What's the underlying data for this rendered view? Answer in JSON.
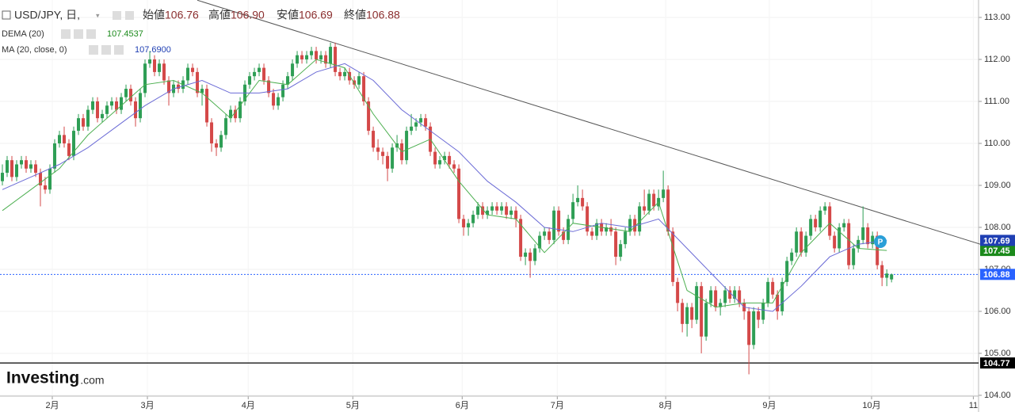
{
  "chart_data": {
    "type": "candlestick",
    "title": "USD/JPY, 日,",
    "header_stats": [
      {
        "label": "始値",
        "value": 106.76
      },
      {
        "label": "高値",
        "value": {
          "value": 106.9,
          "label": "106.90"
        }
      },
      {
        "label": "安値",
        "value": 106.69
      },
      {
        "label": "終値",
        "value": 106.88
      }
    ],
    "up_color": "#2e9e55",
    "down_color": "#d44848",
    "xlim": [
      -0.5,
      205.3
    ],
    "ylim": [
      103.98,
      113.415
    ],
    "xticks": [
      {
        "value": 10.5,
        "label": "2月"
      },
      {
        "value": 30.5,
        "label": "3月"
      },
      {
        "value": 51.7,
        "label": "4月"
      },
      {
        "value": 73.7,
        "label": "5月"
      },
      {
        "value": 96.7,
        "label": "6月"
      },
      {
        "value": 116.7,
        "label": "7月"
      },
      {
        "value": 139.5,
        "label": "8月"
      },
      {
        "value": 161.3,
        "label": "9月"
      },
      {
        "value": 182.8,
        "label": "10月"
      },
      {
        "value": 204.2,
        "label": "11"
      }
    ],
    "yticks": [
      {
        "value": 104,
        "label": "104.00"
      },
      {
        "value": 105,
        "label": "105.00"
      },
      {
        "value": 106,
        "label": "106.00"
      },
      {
        "value": 107,
        "label": "107.00"
      },
      {
        "value": 108,
        "label": "108.00"
      },
      {
        "value": 109,
        "label": "109.00"
      },
      {
        "value": 110,
        "label": "110.00"
      },
      {
        "value": 111,
        "label": "111.00"
      },
      {
        "value": 112,
        "label": "112.00"
      },
      {
        "value": 113,
        "label": "113.00"
      }
    ],
    "grid": true,
    "candles": [
      [
        109.1,
        109.5,
        109.0,
        109.3
      ],
      [
        109.3,
        109.7,
        109.2,
        109.6
      ],
      [
        109.6,
        109.7,
        109.1,
        109.2
      ],
      [
        109.2,
        109.6,
        109.1,
        109.5
      ],
      [
        109.5,
        109.7,
        109.4,
        109.6
      ],
      [
        109.6,
        109.7,
        109.3,
        109.4
      ],
      [
        109.4,
        109.6,
        109.3,
        109.5
      ],
      [
        109.5,
        109.6,
        109.2,
        109.3
      ],
      [
        109.3,
        109.4,
        108.5,
        109.0
      ],
      [
        109.0,
        109.2,
        108.8,
        108.9
      ],
      [
        108.9,
        109.5,
        108.8,
        109.4
      ],
      [
        109.4,
        110.1,
        109.3,
        110.0
      ],
      [
        110.0,
        110.3,
        109.9,
        110.2
      ],
      [
        110.2,
        110.4,
        109.9,
        110.0
      ],
      [
        110.0,
        110.1,
        109.6,
        109.7
      ],
      [
        109.7,
        110.4,
        109.6,
        110.3
      ],
      [
        110.3,
        110.7,
        110.2,
        110.6
      ],
      [
        110.6,
        110.7,
        110.3,
        110.4
      ],
      [
        110.4,
        110.9,
        110.3,
        110.8
      ],
      [
        110.8,
        111.1,
        110.7,
        111.0
      ],
      [
        111.0,
        111.1,
        110.5,
        110.6
      ],
      [
        110.6,
        110.8,
        110.5,
        110.7
      ],
      [
        110.7,
        111.0,
        110.6,
        110.9
      ],
      [
        110.9,
        111.1,
        110.8,
        111.0
      ],
      [
        111.0,
        111.1,
        110.7,
        110.8
      ],
      [
        110.8,
        111.2,
        110.7,
        111.1
      ],
      [
        111.1,
        111.4,
        111.0,
        111.3
      ],
      [
        111.3,
        111.4,
        110.9,
        111.0
      ],
      [
        111.0,
        111.1,
        110.4,
        110.6
      ],
      [
        110.6,
        111.3,
        110.5,
        111.2
      ],
      [
        111.2,
        112.0,
        111.1,
        111.9
      ],
      [
        111.9,
        112.2,
        111.8,
        112.0
      ],
      [
        112.0,
        112.1,
        111.6,
        111.7
      ],
      [
        111.7,
        112.0,
        111.6,
        111.9
      ],
      [
        111.9,
        112.0,
        111.4,
        111.5
      ],
      [
        111.5,
        111.6,
        110.9,
        111.2
      ],
      [
        111.2,
        111.5,
        111.1,
        111.4
      ],
      [
        111.4,
        111.5,
        111.2,
        111.3
      ],
      [
        111.3,
        111.6,
        111.2,
        111.5
      ],
      [
        111.5,
        111.9,
        111.4,
        111.8
      ],
      [
        111.8,
        111.9,
        111.6,
        111.7
      ],
      [
        111.7,
        111.8,
        111.1,
        111.2
      ],
      [
        111.2,
        111.4,
        110.9,
        111.3
      ],
      [
        111.3,
        111.4,
        110.4,
        110.5
      ],
      [
        110.5,
        110.6,
        109.8,
        110.0
      ],
      [
        110.0,
        110.1,
        109.7,
        109.9
      ],
      [
        109.9,
        110.3,
        109.8,
        110.2
      ],
      [
        110.2,
        110.7,
        110.1,
        110.6
      ],
      [
        110.6,
        110.9,
        110.5,
        110.8
      ],
      [
        110.8,
        110.9,
        110.5,
        110.6
      ],
      [
        110.6,
        111.1,
        110.5,
        111.0
      ],
      [
        111.0,
        111.5,
        110.9,
        111.4
      ],
      [
        111.4,
        111.7,
        111.3,
        111.6
      ],
      [
        111.6,
        111.8,
        111.5,
        111.7
      ],
      [
        111.7,
        111.9,
        111.6,
        111.8
      ],
      [
        111.8,
        111.9,
        111.4,
        111.5
      ],
      [
        111.5,
        111.6,
        111.1,
        111.2
      ],
      [
        111.2,
        111.3,
        110.8,
        110.9
      ],
      [
        110.9,
        111.2,
        110.8,
        111.1
      ],
      [
        111.1,
        111.5,
        111.0,
        111.4
      ],
      [
        111.4,
        111.7,
        111.3,
        111.6
      ],
      [
        111.6,
        112.0,
        111.5,
        111.9
      ],
      [
        111.9,
        112.2,
        111.8,
        112.1
      ],
      [
        112.1,
        112.2,
        111.9,
        112.0
      ],
      [
        112.0,
        112.2,
        111.9,
        112.1
      ],
      [
        112.1,
        112.3,
        112.0,
        112.2
      ],
      [
        112.2,
        112.3,
        111.9,
        112.0
      ],
      [
        112.0,
        112.2,
        111.9,
        112.1
      ],
      [
        112.1,
        112.2,
        111.8,
        111.9
      ],
      [
        111.9,
        112.4,
        111.8,
        112.3
      ],
      [
        112.3,
        112.4,
        111.6,
        111.7
      ],
      [
        111.7,
        111.8,
        111.5,
        111.6
      ],
      [
        111.6,
        111.8,
        111.5,
        111.7
      ],
      [
        111.7,
        111.8,
        111.4,
        111.5
      ],
      [
        111.5,
        111.6,
        111.3,
        111.4
      ],
      [
        111.4,
        111.7,
        111.3,
        111.6
      ],
      [
        111.6,
        111.7,
        110.9,
        111.0
      ],
      [
        111.0,
        111.1,
        110.2,
        110.3
      ],
      [
        110.3,
        110.4,
        109.8,
        109.9
      ],
      [
        109.9,
        110.1,
        109.6,
        109.8
      ],
      [
        109.8,
        109.9,
        109.5,
        109.7
      ],
      [
        109.7,
        109.8,
        109.1,
        109.4
      ],
      [
        109.4,
        110.0,
        109.3,
        109.9
      ],
      [
        109.9,
        110.2,
        109.8,
        110.0
      ],
      [
        110.0,
        110.1,
        109.5,
        109.6
      ],
      [
        109.6,
        110.4,
        109.5,
        110.3
      ],
      [
        110.3,
        110.7,
        110.2,
        110.4
      ],
      [
        110.4,
        110.6,
        110.3,
        110.5
      ],
      [
        110.5,
        110.7,
        110.4,
        110.6
      ],
      [
        110.6,
        110.7,
        110.3,
        110.4
      ],
      [
        110.4,
        110.5,
        109.7,
        109.8
      ],
      [
        109.8,
        109.9,
        109.4,
        109.5
      ],
      [
        109.5,
        109.7,
        109.4,
        109.6
      ],
      [
        109.6,
        109.8,
        109.5,
        109.7
      ],
      [
        109.7,
        109.8,
        109.4,
        109.5
      ],
      [
        109.5,
        109.6,
        109.3,
        109.4
      ],
      [
        109.4,
        109.5,
        108.1,
        108.2
      ],
      [
        108.2,
        108.3,
        107.8,
        108.0
      ],
      [
        108.0,
        108.2,
        107.8,
        108.1
      ],
      [
        108.1,
        108.4,
        108.0,
        108.3
      ],
      [
        108.3,
        108.6,
        108.2,
        108.5
      ],
      [
        108.5,
        108.6,
        108.2,
        108.3
      ],
      [
        108.3,
        108.5,
        108.2,
        108.4
      ],
      [
        108.4,
        108.6,
        108.3,
        108.5
      ],
      [
        108.5,
        108.6,
        108.3,
        108.4
      ],
      [
        108.4,
        108.6,
        108.3,
        108.5
      ],
      [
        108.5,
        108.6,
        108.2,
        108.3
      ],
      [
        108.3,
        108.5,
        108.2,
        108.4
      ],
      [
        108.4,
        108.5,
        108.0,
        108.2
      ],
      [
        108.2,
        108.3,
        107.2,
        107.3
      ],
      [
        107.3,
        107.5,
        107.1,
        107.4
      ],
      [
        107.4,
        107.5,
        106.8,
        107.2
      ],
      [
        107.2,
        107.6,
        107.1,
        107.5
      ],
      [
        107.5,
        107.9,
        107.4,
        107.8
      ],
      [
        107.8,
        108.0,
        107.7,
        107.9
      ],
      [
        107.9,
        108.0,
        107.6,
        107.7
      ],
      [
        107.7,
        108.5,
        107.6,
        108.4
      ],
      [
        108.4,
        108.5,
        107.8,
        107.9
      ],
      [
        107.9,
        108.0,
        107.6,
        107.7
      ],
      [
        107.7,
        108.3,
        107.6,
        108.2
      ],
      [
        108.2,
        108.8,
        108.1,
        108.6
      ],
      [
        108.6,
        109.0,
        108.5,
        108.7
      ],
      [
        108.7,
        108.9,
        108.4,
        108.5
      ],
      [
        108.5,
        108.6,
        107.8,
        107.9
      ],
      [
        107.9,
        108.0,
        107.7,
        107.8
      ],
      [
        107.8,
        108.2,
        107.7,
        108.1
      ],
      [
        108.1,
        108.2,
        107.8,
        107.9
      ],
      [
        107.9,
        108.1,
        107.8,
        108.0
      ],
      [
        108.0,
        108.2,
        107.8,
        107.9
      ],
      [
        107.9,
        108.0,
        107.1,
        107.3
      ],
      [
        107.3,
        107.7,
        107.2,
        107.6
      ],
      [
        107.6,
        108.0,
        107.5,
        107.9
      ],
      [
        107.9,
        108.3,
        107.8,
        108.2
      ],
      [
        108.2,
        108.3,
        107.8,
        107.9
      ],
      [
        107.9,
        108.6,
        107.8,
        108.5
      ],
      [
        108.5,
        108.9,
        108.3,
        108.4
      ],
      [
        108.4,
        108.9,
        108.3,
        108.8
      ],
      [
        108.8,
        108.9,
        108.4,
        108.5
      ],
      [
        108.5,
        108.9,
        108.4,
        108.7
      ],
      [
        108.7,
        109.35,
        108.6,
        108.9
      ],
      [
        108.9,
        109.0,
        107.8,
        107.9
      ],
      [
        107.9,
        108.0,
        106.6,
        106.7
      ],
      [
        106.7,
        106.8,
        106.0,
        106.2
      ],
      [
        106.2,
        106.3,
        105.5,
        105.7
      ],
      [
        105.7,
        106.2,
        105.4,
        106.1
      ],
      [
        106.1,
        106.2,
        105.6,
        105.8
      ],
      [
        105.8,
        106.7,
        105.7,
        106.6
      ],
      [
        106.6,
        106.7,
        105.0,
        105.4
      ],
      [
        105.4,
        106.3,
        105.3,
        106.2
      ],
      [
        106.2,
        106.6,
        106.1,
        106.5
      ],
      [
        106.5,
        106.6,
        106.0,
        106.1
      ],
      [
        106.1,
        106.3,
        105.9,
        106.2
      ],
      [
        106.2,
        106.6,
        106.1,
        106.5
      ],
      [
        106.5,
        106.6,
        106.2,
        106.3
      ],
      [
        106.3,
        106.6,
        106.2,
        106.5
      ],
      [
        106.5,
        106.6,
        106.1,
        106.2
      ],
      [
        106.2,
        106.3,
        105.8,
        106.0
      ],
      [
        106.0,
        106.1,
        104.5,
        105.2
      ],
      [
        105.2,
        106.1,
        105.1,
        106.0
      ],
      [
        106.0,
        106.1,
        105.6,
        105.8
      ],
      [
        105.8,
        106.3,
        105.7,
        106.2
      ],
      [
        106.2,
        106.8,
        106.1,
        106.7
      ],
      [
        106.7,
        106.8,
        106.3,
        106.4
      ],
      [
        106.4,
        106.5,
        105.8,
        106.0
      ],
      [
        106.0,
        106.8,
        105.9,
        106.7
      ],
      [
        106.7,
        107.3,
        106.6,
        107.2
      ],
      [
        107.2,
        107.5,
        107.1,
        107.4
      ],
      [
        107.4,
        108.0,
        107.3,
        107.9
      ],
      [
        107.9,
        108.0,
        107.3,
        107.4
      ],
      [
        107.4,
        107.9,
        107.3,
        107.8
      ],
      [
        107.8,
        108.3,
        107.7,
        108.2
      ],
      [
        108.2,
        108.3,
        107.9,
        108.0
      ],
      [
        108.0,
        108.5,
        107.9,
        108.4
      ],
      [
        108.4,
        108.6,
        108.3,
        108.5
      ],
      [
        108.5,
        108.6,
        107.7,
        107.8
      ],
      [
        107.8,
        107.9,
        107.4,
        107.5
      ],
      [
        107.5,
        108.1,
        107.4,
        108.0
      ],
      [
        108.0,
        108.2,
        107.9,
        108.1
      ],
      [
        108.1,
        108.2,
        107.0,
        107.1
      ],
      [
        107.1,
        107.6,
        107.0,
        107.5
      ],
      [
        107.5,
        107.8,
        107.4,
        107.7
      ],
      [
        107.7,
        108.5,
        107.6,
        108.0
      ],
      [
        108.0,
        108.1,
        107.5,
        107.6
      ],
      [
        107.6,
        107.9,
        107.5,
        107.8
      ],
      [
        107.8,
        107.9,
        107.0,
        107.1
      ],
      [
        107.1,
        107.2,
        106.6,
        106.8
      ],
      [
        106.8,
        107.0,
        106.6,
        106.9
      ],
      [
        106.76,
        106.9,
        106.69,
        106.88
      ]
    ],
    "series": [
      {
        "name": "DEMA (20)",
        "color": "#4caf50",
        "legend_value": 107.4537,
        "last": 107.45,
        "label_color": "#1b8a1b",
        "x": [
          0,
          6,
          12,
          18,
          24,
          30,
          36,
          42,
          48,
          54,
          60,
          66,
          72,
          78,
          84,
          90,
          96,
          102,
          108,
          114,
          120,
          126,
          132,
          138,
          144,
          150,
          156,
          162,
          168,
          174,
          180,
          186
        ],
        "values": [
          108.4,
          108.9,
          109.4,
          110.2,
          110.8,
          111.4,
          111.5,
          111.2,
          110.6,
          111.5,
          111.4,
          112.0,
          111.8,
          110.7,
          109.8,
          110.1,
          109.1,
          108.3,
          108.2,
          107.4,
          108.1,
          108.0,
          107.9,
          108.6,
          106.5,
          106.1,
          106.2,
          106.2,
          107.4,
          108.1,
          107.5,
          107.45
        ]
      },
      {
        "name": "MA (20, close, 0)",
        "color": "#6b6bd6",
        "legend_value": {
          "value": 107.69,
          "label": "107.6900"
        },
        "last": 107.69,
        "label_color": "#1f3fb3",
        "x": [
          0,
          6,
          12,
          18,
          24,
          30,
          36,
          42,
          48,
          54,
          60,
          66,
          72,
          78,
          84,
          90,
          96,
          102,
          108,
          114,
          120,
          126,
          132,
          138,
          144,
          150,
          156,
          162,
          168,
          174,
          180,
          186
        ],
        "values": [
          108.9,
          109.2,
          109.5,
          109.9,
          110.4,
          110.9,
          111.3,
          111.5,
          111.2,
          111.2,
          111.3,
          111.7,
          111.9,
          111.5,
          110.8,
          110.3,
          109.8,
          109.1,
          108.6,
          108.0,
          107.9,
          108.1,
          108.0,
          108.2,
          107.5,
          106.8,
          106.1,
          106.0,
          106.6,
          107.3,
          107.6,
          107.69
        ]
      }
    ],
    "trendline": {
      "x": [
        41,
        213
      ],
      "values": [
        113.41,
        107.34
      ],
      "color": "#555"
    },
    "price_lines": [
      {
        "value": 106.88,
        "color": "#2962ff",
        "dashed": true
      },
      {
        "value": 104.77,
        "color": "#000000",
        "dashed": false
      }
    ],
    "marker_label": "P",
    "logo": {
      "name": "Investing",
      "suffix": ".com"
    }
  }
}
